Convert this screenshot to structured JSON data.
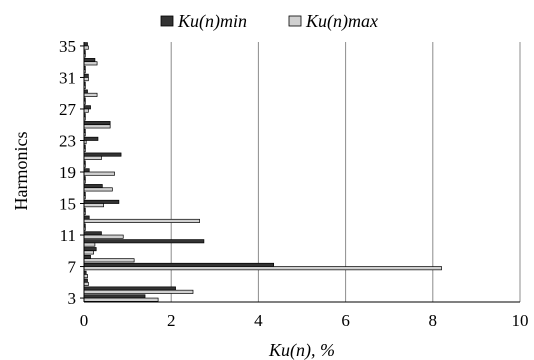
{
  "chart_data": {
    "type": "bar",
    "orientation": "horizontal",
    "title": "",
    "xlabel": "Ku(n), %",
    "ylabel": "Harmonics",
    "xlim": [
      0,
      10
    ],
    "x_ticks": [
      "0",
      "2",
      "4",
      "6",
      "8",
      "10"
    ],
    "categories": [
      3,
      4,
      5,
      6,
      7,
      8,
      9,
      10,
      11,
      12,
      13,
      14,
      15,
      16,
      17,
      18,
      19,
      20,
      21,
      22,
      23,
      24,
      25,
      26,
      27,
      28,
      29,
      30,
      31,
      32,
      33,
      34,
      35
    ],
    "category_tick_labels": [
      "3",
      "7",
      "11",
      "15",
      "19",
      "23",
      "27",
      "31",
      "35"
    ],
    "grid": true,
    "legend_position": "top",
    "series": [
      {
        "name": "Ku(n)min",
        "color": "#333333",
        "values": [
          1.4,
          2.1,
          0.08,
          0.05,
          4.35,
          0.15,
          0.28,
          2.75,
          0.4,
          0.03,
          0.12,
          0.03,
          0.8,
          0.03,
          0.42,
          0.03,
          0.12,
          0.03,
          0.85,
          0.03,
          0.32,
          0.03,
          0.6,
          0.03,
          0.15,
          0.03,
          0.08,
          0.03,
          0.1,
          0.03,
          0.25,
          0.03,
          0.08
        ]
      },
      {
        "name": "Ku(n)max",
        "color": "#d0d0d0",
        "values": [
          1.7,
          2.5,
          0.1,
          0.08,
          8.2,
          1.15,
          0.22,
          0.25,
          0.9,
          0.03,
          2.65,
          0.03,
          0.45,
          0.03,
          0.65,
          0.03,
          0.7,
          0.03,
          0.4,
          0.03,
          0.05,
          0.03,
          0.6,
          0.03,
          0.1,
          0.03,
          0.3,
          0.03,
          0.1,
          0.03,
          0.3,
          0.03,
          0.1
        ]
      }
    ]
  }
}
